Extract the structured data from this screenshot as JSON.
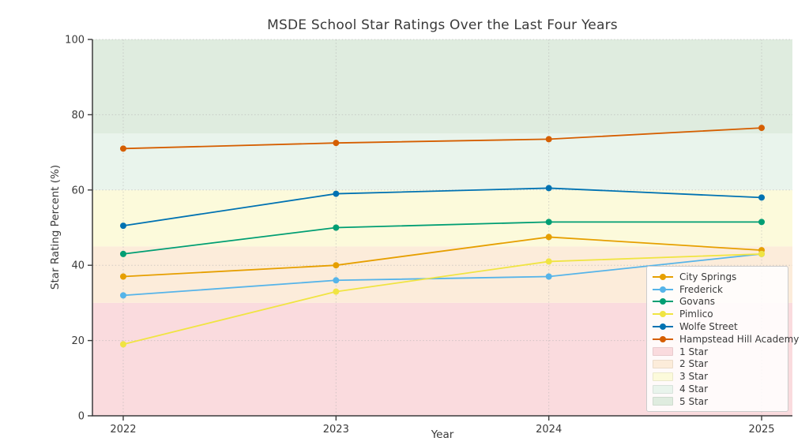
{
  "title": "MSDE School Star Ratings Over the Last Four Years",
  "chart_data": {
    "type": "line",
    "title": "MSDE School Star Ratings Over the Last Four Years",
    "xlabel": "Year",
    "ylabel": "Star Rating Percent (%)",
    "x": [
      "2022",
      "2023",
      "2024",
      "2025"
    ],
    "ylim": [
      0,
      100
    ],
    "yticks": [
      0,
      20,
      40,
      60,
      80,
      100
    ],
    "grid": true,
    "grid_style": "dotted",
    "legend_position": "lower right",
    "series": [
      {
        "name": "City Springs",
        "color": "#E69F00",
        "values": [
          37,
          40,
          47.5,
          44
        ]
      },
      {
        "name": "Frederick",
        "color": "#56B4E9",
        "values": [
          32,
          36,
          37,
          43
        ]
      },
      {
        "name": "Govans",
        "color": "#009E73",
        "values": [
          43,
          50,
          51.5,
          51.5
        ]
      },
      {
        "name": "Pimlico",
        "color": "#F0E442",
        "values": [
          19,
          33,
          41,
          43
        ]
      },
      {
        "name": "Wolfe Street",
        "color": "#0072B2",
        "values": [
          50.5,
          59,
          60.5,
          58
        ]
      },
      {
        "name": "Hampstead Hill Academy",
        "color": "#D55E00",
        "values": [
          71,
          72.5,
          73.5,
          76.5
        ]
      }
    ],
    "bands": [
      {
        "name": "1 Star",
        "min": 0,
        "max": 30,
        "color": "#fadbde"
      },
      {
        "name": "2 Star",
        "min": 30,
        "max": 45,
        "color": "#fcecda"
      },
      {
        "name": "3 Star",
        "min": 45,
        "max": 60,
        "color": "#fcfadb"
      },
      {
        "name": "4 Star",
        "min": 60,
        "max": 75,
        "color": "#e9f4ec"
      },
      {
        "name": "5 Star",
        "min": 75,
        "max": 100,
        "color": "#dfecdf"
      }
    ]
  },
  "colors": {
    "text": "#3a3a3a",
    "spine": "#3b3b3b",
    "grid": "#b0b0b0",
    "legend_border": "#cccccc"
  }
}
